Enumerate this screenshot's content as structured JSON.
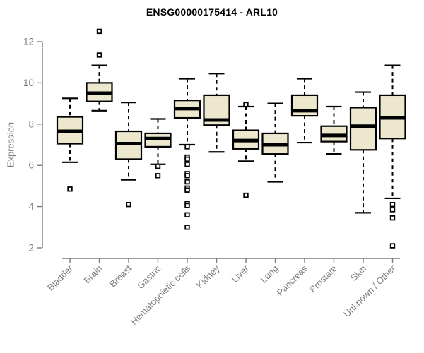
{
  "chart_data": {
    "type": "boxplot",
    "title": "ENSG00000175414 - ARL10",
    "ylabel": "Expression",
    "xlabel": "",
    "ylim": [
      2,
      12
    ],
    "y_ticks": [
      2,
      4,
      6,
      8,
      10,
      12
    ],
    "grid": false,
    "legend": "none",
    "categories": [
      "Bladder",
      "Brain",
      "Breast",
      "Gastric",
      "Hematopoietic cells",
      "Kidney",
      "Liver",
      "Lung",
      "Pancreas",
      "Prostate",
      "Skin",
      "Unknown / Other"
    ],
    "series": [
      {
        "category": "Bladder",
        "whisker_low": 6.15,
        "q1": 7.05,
        "median": 7.65,
        "q3": 8.35,
        "whisker_high": 9.25,
        "outliers": [
          4.85
        ]
      },
      {
        "category": "Brain",
        "whisker_low": 8.65,
        "q1": 9.1,
        "median": 9.5,
        "q3": 10.0,
        "whisker_high": 10.85,
        "outliers": [
          12.5,
          11.35
        ]
      },
      {
        "category": "Breast",
        "whisker_low": 5.3,
        "q1": 6.3,
        "median": 7.05,
        "q3": 7.65,
        "whisker_high": 9.05,
        "outliers": [
          4.1
        ]
      },
      {
        "category": "Gastric",
        "whisker_low": 6.05,
        "q1": 6.9,
        "median": 7.3,
        "q3": 7.55,
        "whisker_high": 8.25,
        "outliers": [
          5.95,
          5.5
        ]
      },
      {
        "category": "Hematopoietic cells",
        "whisker_low": 7.0,
        "q1": 8.3,
        "median": 8.75,
        "q3": 9.15,
        "whisker_high": 10.2,
        "outliers": [
          6.9,
          6.4,
          6.3,
          6.05,
          5.6,
          5.5,
          5.2,
          4.9,
          4.8,
          4.15,
          4.05,
          3.6,
          3.0
        ]
      },
      {
        "category": "Kidney",
        "whisker_low": 6.65,
        "q1": 7.95,
        "median": 8.2,
        "q3": 9.4,
        "whisker_high": 10.45,
        "outliers": []
      },
      {
        "category": "Liver",
        "whisker_low": 6.2,
        "q1": 6.8,
        "median": 7.2,
        "q3": 7.7,
        "whisker_high": 8.85,
        "outliers": [
          8.95,
          4.55
        ]
      },
      {
        "category": "Lung",
        "whisker_low": 5.2,
        "q1": 6.55,
        "median": 7.0,
        "q3": 7.55,
        "whisker_high": 9.0,
        "outliers": []
      },
      {
        "category": "Pancreas",
        "whisker_low": 7.1,
        "q1": 8.4,
        "median": 8.65,
        "q3": 9.4,
        "whisker_high": 10.2,
        "outliers": []
      },
      {
        "category": "Prostate",
        "whisker_low": 6.55,
        "q1": 7.15,
        "median": 7.45,
        "q3": 7.9,
        "whisker_high": 8.85,
        "outliers": []
      },
      {
        "category": "Skin",
        "whisker_low": 3.7,
        "q1": 6.75,
        "median": 7.9,
        "q3": 8.8,
        "whisker_high": 9.55,
        "outliers": []
      },
      {
        "category": "Unknown / Other",
        "whisker_low": 4.4,
        "q1": 7.3,
        "median": 8.3,
        "q3": 9.4,
        "whisker_high": 10.85,
        "outliers": [
          4.1,
          3.85,
          3.45,
          2.1
        ]
      }
    ],
    "colors": {
      "box_fill": "#EDE7CE",
      "box_border": "#000000",
      "median": "#000000",
      "axis": "#7d7d7d",
      "tick_label": "#7d7d7d",
      "title": "#000000",
      "background": "#ffffff"
    }
  }
}
